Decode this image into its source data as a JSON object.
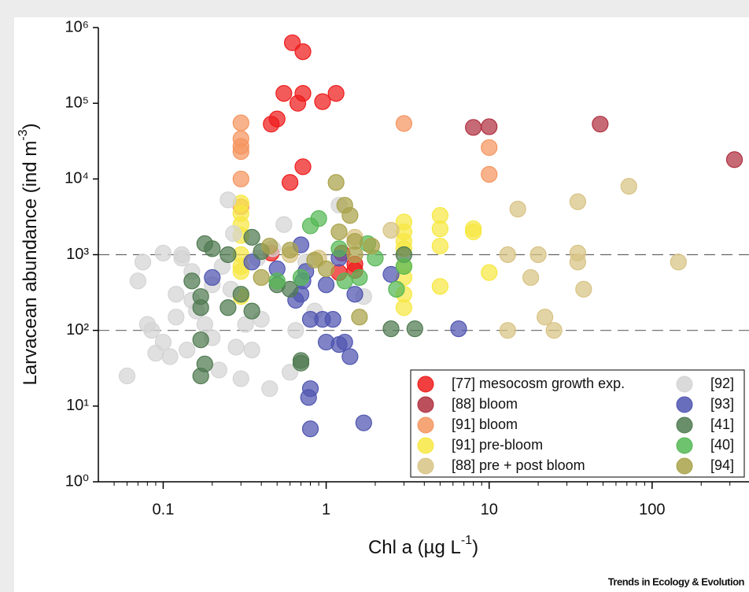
{
  "chart_data": {
    "type": "scatter",
    "xlabel": [
      "Chl a (µg L",
      "-1",
      ")"
    ],
    "ylabel": [
      "Larvacean abundance (ind m",
      "-3",
      ")"
    ],
    "footer": "Trends in Ecology & Evolution",
    "xscale": "log",
    "yscale": "log",
    "xlim": [
      0.04,
      393
    ],
    "ylim": [
      1,
      1000000
    ],
    "xticks": [
      0.1,
      1,
      10,
      100
    ],
    "xminorticks": [
      0.05,
      0.06,
      0.07,
      0.08,
      0.09,
      0.2,
      0.3,
      0.4,
      0.5,
      0.6,
      0.7,
      0.8,
      0.9,
      2,
      3,
      4,
      5,
      6,
      7,
      8,
      9,
      20,
      30,
      40,
      50,
      60,
      70,
      80,
      90,
      200,
      300
    ],
    "yticks": [
      {
        "value": 1,
        "label": "10⁰"
      },
      {
        "value": 10,
        "label": "10¹"
      },
      {
        "value": 100,
        "label": "10²"
      },
      {
        "value": 1000,
        "label": "10³"
      },
      {
        "value": 10000,
        "label": "10⁴"
      },
      {
        "value": 100000,
        "label": "10⁵"
      },
      {
        "value": 1000000,
        "label": "10⁶"
      }
    ],
    "reference_lines": [
      1000,
      100
    ],
    "legend": "lower right",
    "series": [
      {
        "name": "[77] mesocosm growth exp.",
        "color": "#ee1c1c",
        "x": [
          0.62,
          0.72,
          0.55,
          0.72,
          0.67,
          0.95,
          1.15,
          0.5,
          0.46,
          0.72,
          0.6,
          0.46,
          1.25,
          1.5,
          1.2,
          1.5
        ],
        "values": [
          630000,
          480000,
          135000,
          135000,
          100000,
          105000,
          135000,
          62000,
          53000,
          14500,
          9000,
          1050,
          1050,
          750,
          580,
          620
        ]
      },
      {
        "name": "[88] bloom",
        "color": "#b03040",
        "x": [
          8,
          10,
          48,
          320
        ],
        "values": [
          48000,
          49000,
          53000,
          18000
        ]
      },
      {
        "name": "[91] bloom",
        "color": "#f5955f",
        "x": [
          0.3,
          0.3,
          0.3,
          0.3,
          0.3,
          3,
          10,
          10,
          0.3
        ],
        "values": [
          55000,
          34000,
          27000,
          23000,
          10000,
          54000,
          26000,
          11500,
          4300
        ]
      },
      {
        "name": "[91] pre-bloom",
        "color": "#f7e842",
        "x": [
          0.3,
          0.3,
          0.3,
          0.3,
          0.3,
          0.3,
          0.3,
          0.3,
          3,
          3,
          3,
          3,
          3,
          3,
          3,
          3,
          5,
          5,
          5,
          5,
          8,
          8,
          10
        ],
        "values": [
          4800,
          3500,
          2500,
          1800,
          1000,
          700,
          600,
          280,
          2700,
          2000,
          1500,
          1200,
          700,
          500,
          300,
          200,
          3300,
          2200,
          1300,
          380,
          2200,
          2000,
          580
        ]
      },
      {
        "name": "[88] pre + post bloom",
        "color": "#d8c384",
        "x": [
          15,
          35,
          72,
          13,
          20,
          35,
          35,
          145,
          18,
          38,
          22,
          13,
          25,
          2.5,
          1.5,
          0.6,
          0.9
        ],
        "values": [
          4000,
          5000,
          8000,
          1000,
          1000,
          1050,
          800,
          800,
          500,
          350,
          150,
          100,
          100,
          2100,
          1700,
          1000,
          900
        ]
      },
      {
        "name": "[92]",
        "color": "#d4d4d4",
        "x": [
          0.06,
          0.07,
          0.075,
          0.08,
          0.085,
          0.09,
          0.1,
          0.1,
          0.11,
          0.12,
          0.12,
          0.13,
          0.14,
          0.15,
          0.15,
          0.16,
          0.18,
          0.2,
          0.2,
          0.22,
          0.23,
          0.25,
          0.27,
          0.28,
          0.3,
          0.32,
          0.35,
          0.38,
          0.4,
          0.45,
          0.47,
          0.55,
          0.6,
          0.65,
          0.75,
          0.85,
          1.2,
          1.7,
          0.13,
          0.26
        ],
        "values": [
          25,
          450,
          800,
          120,
          100,
          50,
          1050,
          70,
          45,
          300,
          150,
          900,
          55,
          600,
          250,
          180,
          120,
          80,
          400,
          30,
          700,
          5300,
          1900,
          60,
          23,
          120,
          55,
          900,
          140,
          17,
          1200,
          2500,
          28,
          100,
          800,
          180,
          4500,
          280,
          1000,
          350
        ]
      },
      {
        "name": "[93]",
        "color": "#4f55b0",
        "x": [
          0.8,
          1.7,
          0.8,
          0.78,
          0.7,
          0.75,
          0.72,
          0.65,
          0.7,
          0.8,
          0.95,
          1.1,
          1.3,
          1.4,
          1.2,
          1,
          0.2,
          0.35,
          1,
          1.5,
          2.5,
          6.5,
          0.5,
          1.2
        ],
        "values": [
          5,
          6,
          17,
          13,
          1350,
          600,
          450,
          250,
          300,
          140,
          140,
          140,
          70,
          45,
          65,
          70,
          500,
          800,
          400,
          300,
          550,
          105,
          650,
          900
        ]
      },
      {
        "name": "[41]",
        "color": "#4f7a50",
        "x": [
          0.17,
          0.18,
          0.7,
          0.7,
          0.17,
          0.15,
          0.18,
          0.2,
          0.25,
          0.17,
          0.17,
          0.25,
          0.35,
          0.3,
          0.4,
          2.5,
          3.5,
          3,
          0.6,
          0.5,
          0.35
        ],
        "values": [
          25,
          36,
          40,
          37,
          75,
          450,
          1400,
          1200,
          1000,
          280,
          200,
          200,
          180,
          300,
          1100,
          105,
          105,
          1000,
          350,
          400,
          1700
        ]
      },
      {
        "name": "[40]",
        "color": "#55b855",
        "x": [
          0.9,
          0.8,
          1.2,
          1.8,
          2,
          0.7,
          0.5,
          1.6,
          2.7,
          3,
          1.3
        ],
        "values": [
          3000,
          2400,
          1200,
          1400,
          900,
          500,
          450,
          500,
          350,
          700,
          450
        ]
      },
      {
        "name": "[94]",
        "color": "#a9a24a",
        "x": [
          1.15,
          1.3,
          1.4,
          1.2,
          1.5,
          1.9,
          1.5,
          0.85,
          1,
          1.6,
          0.45,
          0.6,
          0.4
        ],
        "values": [
          9000,
          4500,
          3300,
          2000,
          1500,
          1300,
          1000,
          850,
          650,
          150,
          1300,
          1150,
          500
        ]
      }
    ]
  }
}
